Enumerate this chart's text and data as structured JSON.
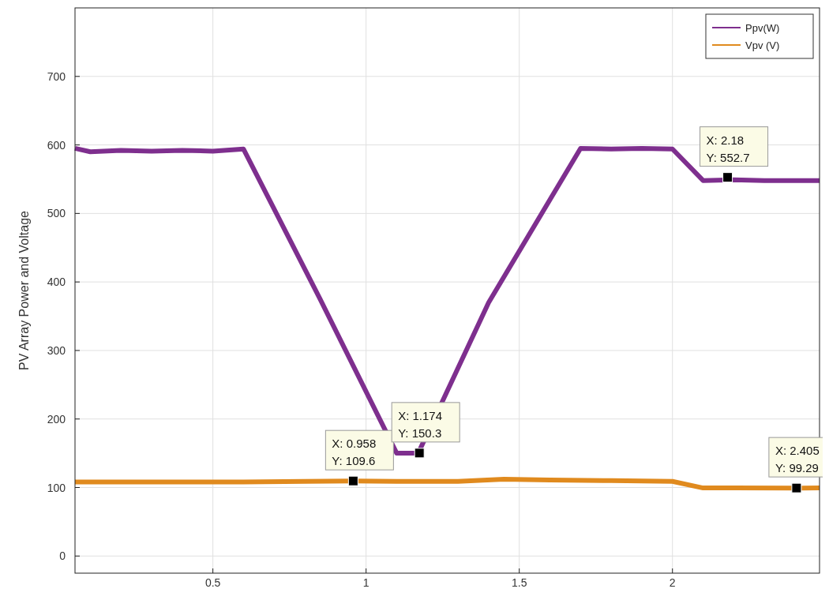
{
  "chart_data": {
    "type": "line",
    "ylabel": "PV Array Power and Voltage",
    "xlim": [
      0.05,
      2.48
    ],
    "ylim": [
      -25,
      800
    ],
    "xticks": [
      0.5,
      1,
      1.5,
      2
    ],
    "yticks": [
      0,
      100,
      200,
      300,
      400,
      500,
      600,
      700
    ],
    "grid": true,
    "legend": "top right",
    "marker": "none",
    "line_style": "solid",
    "series": [
      {
        "name": "Ppv(W)",
        "color": "#7e2f8e",
        "x": [
          0.05,
          0.1,
          0.2,
          0.3,
          0.4,
          0.5,
          0.6,
          0.85,
          1.1,
          1.17,
          1.4,
          1.7,
          1.8,
          1.9,
          2.0,
          2.1,
          2.2,
          2.3,
          2.48
        ],
        "values": [
          595,
          590,
          592,
          591,
          592,
          591,
          594,
          375,
          150,
          150,
          370,
          595,
          594,
          595,
          594,
          548,
          549,
          548,
          548
        ]
      },
      {
        "name": "Vpv (V)",
        "color": "#e08a1e",
        "x": [
          0.05,
          0.2,
          0.4,
          0.6,
          0.8,
          0.958,
          1.1,
          1.3,
          1.45,
          1.6,
          1.8,
          2.0,
          2.1,
          2.2,
          2.405,
          2.48
        ],
        "values": [
          108,
          108,
          108,
          108,
          109,
          109.6,
          109,
          109,
          112,
          111,
          110,
          109,
          99.3,
          99.3,
          99.29,
          99.3
        ]
      }
    ],
    "annotations": [
      {
        "text": "X: 0.958\nY: 109.6",
        "x": 0.958,
        "y": 109.6
      },
      {
        "text": "X: 1.174\nY: 150.3",
        "x": 1.174,
        "y": 150.3
      },
      {
        "text": "X: 2.18\nY: 552.7",
        "x": 2.18,
        "y": 552.7
      },
      {
        "text": "X: 2.405\nY: 99.29",
        "x": 2.405,
        "y": 99.29
      }
    ]
  }
}
